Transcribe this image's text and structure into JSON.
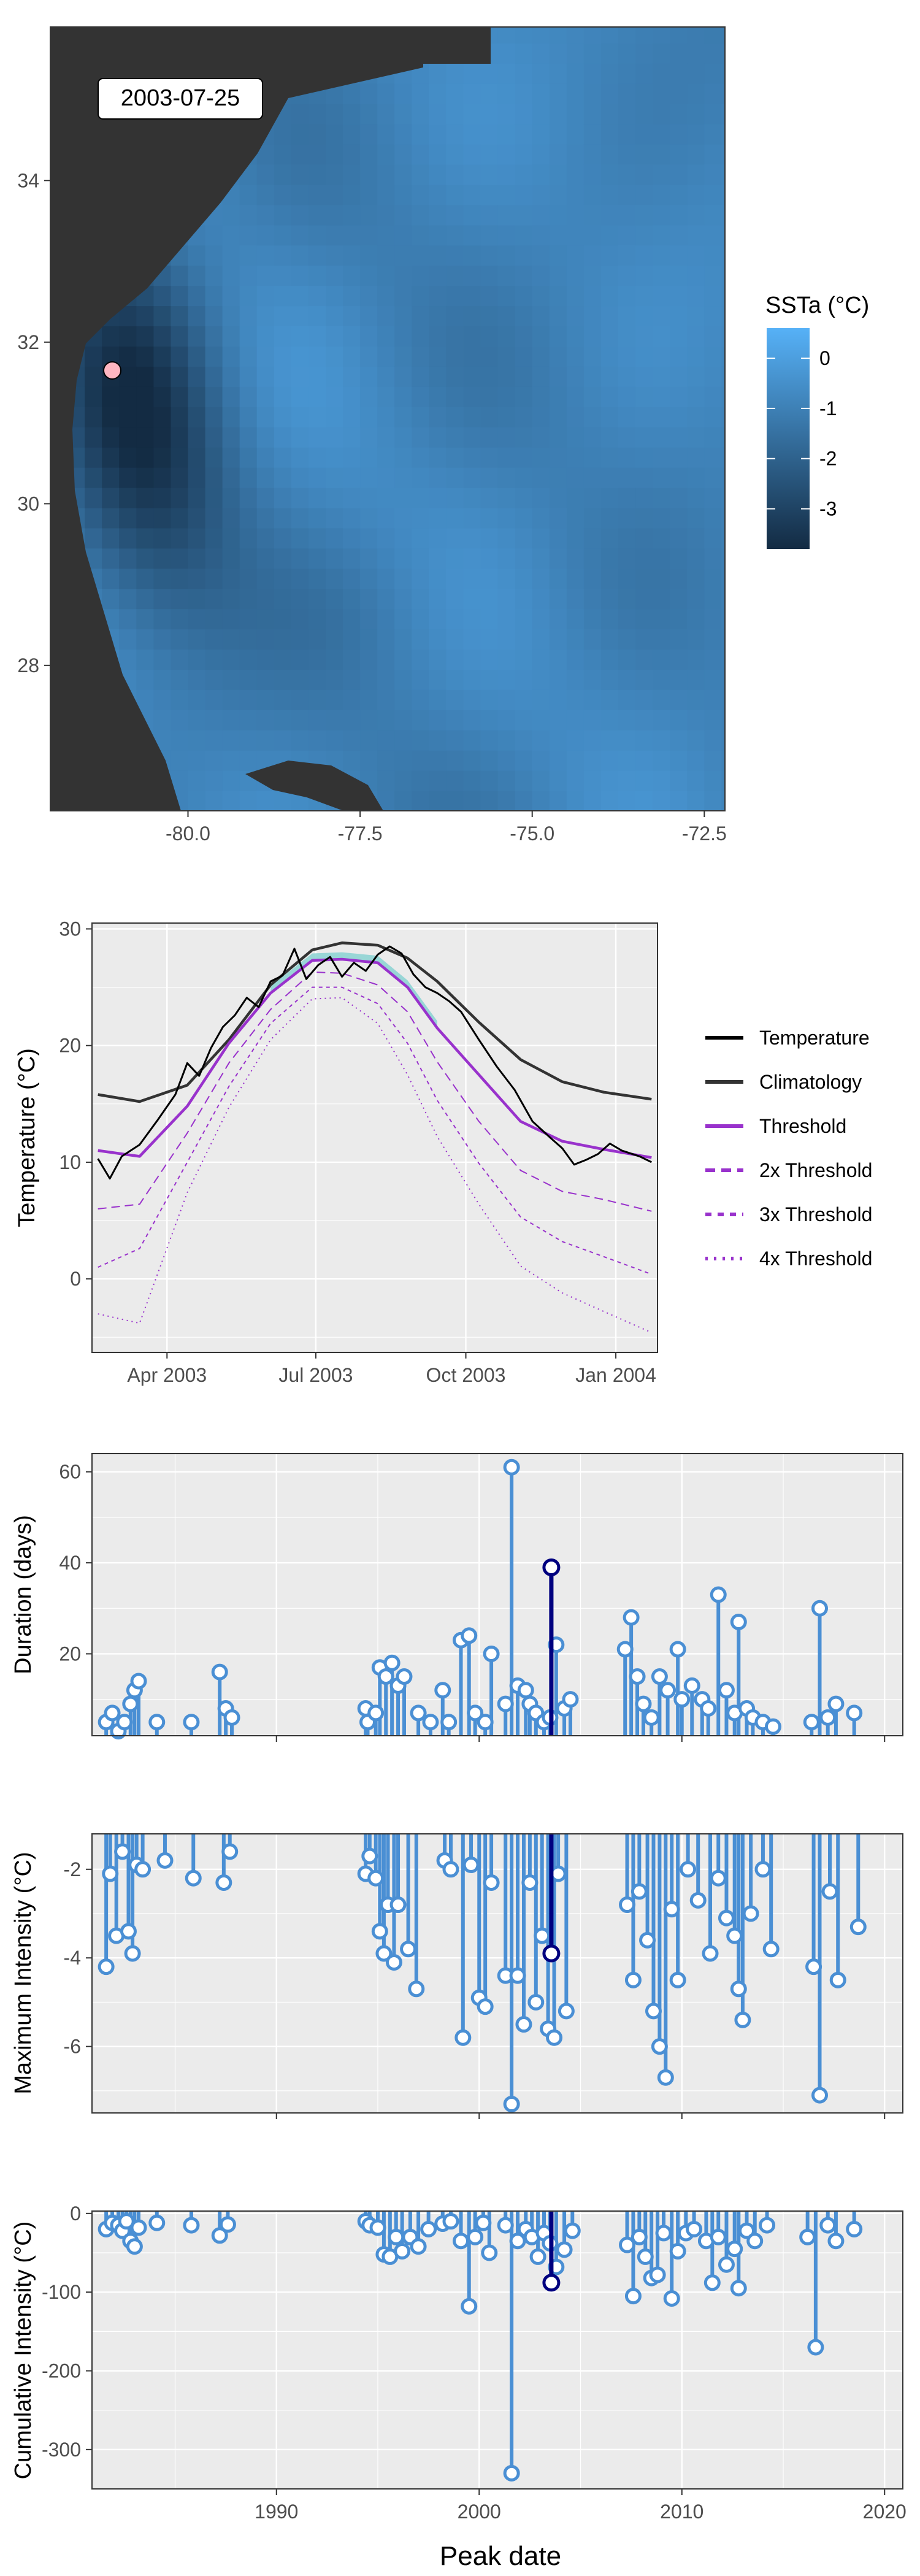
{
  "chart_data": [
    {
      "type": "heatmap",
      "date_label": "2003-07-25",
      "x_ticks": [
        "-80.0",
        "-77.5",
        "-75.0",
        "-72.5"
      ],
      "x_tick_values": [
        -80.0,
        -77.5,
        -75.0,
        -72.5
      ],
      "y_ticks": [
        "28",
        "30",
        "32",
        "34"
      ],
      "y_tick_values": [
        28,
        30,
        32,
        34
      ],
      "xlim": [
        -82.0,
        -72.2
      ],
      "ylim": [
        26.2,
        35.9
      ],
      "legend": {
        "title": "SSTa (°C)",
        "tick_labels": [
          "0",
          "-1",
          "-2",
          "-3"
        ],
        "tick_values": [
          0,
          -1,
          -2,
          -3
        ],
        "range": [
          -3.8,
          0.6
        ],
        "colors": [
          "#132B43",
          "#56B1F7"
        ]
      },
      "marker": {
        "lon": -81.1,
        "lat": 31.65,
        "color": "#ffb6c1"
      },
      "land_color": "#333333"
    },
    {
      "type": "line",
      "x_ticks": [
        "Apr 2003",
        "Jul 2003",
        "Oct 2003",
        "Jan 2004"
      ],
      "x_tick_values": [
        2003.246,
        2003.496,
        2003.748,
        2004.0
      ],
      "xlim": [
        2003.12,
        2004.07
      ],
      "y_ticks": [
        "0",
        "10",
        "20",
        "30"
      ],
      "y_tick_values": [
        0,
        10,
        20,
        30
      ],
      "ylim": [
        -6.3,
        30.5
      ],
      "ylabel": "Temperature (°C)",
      "x": [
        2003.13,
        2003.2,
        2003.28,
        2003.35,
        2003.42,
        2003.49,
        2003.54,
        2003.6,
        2003.65,
        2003.7,
        2003.77,
        2003.84,
        2003.91,
        2003.98,
        2004.06
      ],
      "series": [
        {
          "name": "Climatology",
          "values": [
            15.8,
            15.2,
            16.6,
            20.5,
            25.2,
            28.2,
            28.8,
            28.6,
            27.5,
            25.5,
            22.0,
            18.8,
            16.9,
            16.0,
            15.4
          ],
          "color": "#333333"
        },
        {
          "name": "Threshold",
          "values": [
            11.0,
            10.5,
            14.8,
            20.2,
            24.5,
            27.3,
            27.4,
            27.1,
            25.0,
            21.5,
            17.5,
            13.5,
            11.8,
            11.1,
            10.4
          ],
          "color": "#9932CC"
        },
        {
          "name": "2x Threshold",
          "values": [
            6.0,
            6.4,
            12.5,
            18.5,
            23.1,
            26.3,
            26.2,
            25.2,
            22.9,
            18.6,
            13.5,
            9.3,
            7.5,
            6.8,
            5.8
          ],
          "color": "#9932CC"
        },
        {
          "name": "3x Threshold",
          "values": [
            1.0,
            2.6,
            10.0,
            16.5,
            21.9,
            25.0,
            25.0,
            23.6,
            20.2,
            15.3,
            9.9,
            5.3,
            3.2,
            1.9,
            0.4
          ],
          "color": "#9932CC"
        },
        {
          "name": "4x Threshold",
          "values": [
            -3.0,
            -3.8,
            7.4,
            14.7,
            20.5,
            24.0,
            24.1,
            21.9,
            17.5,
            12.2,
            6.4,
            1.1,
            -1.2,
            -2.8,
            -4.6
          ],
          "color": "#9932CC"
        }
      ],
      "temperature": {
        "name": "Temperature",
        "x": [
          2003.13,
          2003.15,
          2003.17,
          2003.2,
          2003.23,
          2003.26,
          2003.28,
          2003.3,
          2003.32,
          2003.34,
          2003.36,
          2003.38,
          2003.4,
          2003.42,
          2003.44,
          2003.46,
          2003.48,
          2003.5,
          2003.52,
          2003.54,
          2003.56,
          2003.58,
          2003.6,
          2003.62,
          2003.64,
          2003.66,
          2003.68,
          2003.7,
          2003.72,
          2003.74,
          2003.77,
          2003.8,
          2003.83,
          2003.86,
          2003.89,
          2003.91,
          2003.93,
          2003.95,
          2003.97,
          2003.99,
          2004.01,
          2004.04,
          2004.06
        ],
        "values": [
          10.3,
          8.6,
          10.5,
          11.5,
          13.6,
          15.8,
          18.5,
          17.4,
          19.8,
          21.6,
          22.6,
          24.1,
          23.3,
          25.5,
          26.0,
          28.3,
          25.7,
          26.9,
          27.6,
          25.9,
          27.1,
          26.4,
          27.8,
          28.5,
          27.9,
          26.1,
          25.0,
          24.5,
          23.8,
          22.9,
          20.5,
          18.2,
          16.2,
          13.5,
          12.1,
          11.2,
          9.8,
          10.2,
          10.7,
          11.6,
          11.0,
          10.5,
          10.0
        ],
        "color": "#000000"
      },
      "legend": {
        "entries": [
          "Temperature",
          "Climatology",
          "Threshold",
          "2x Threshold",
          "3x Threshold",
          "4x Threshold"
        ],
        "placement": "right"
      }
    },
    {
      "type": "lollipop",
      "metric": "Duration (days)",
      "ylabel": "Duration (days)",
      "xlim": [
        1980.9,
        2020.9
      ],
      "x_tick_values": [
        1990,
        2000,
        2010,
        2020
      ],
      "ylim": [
        2,
        64
      ],
      "y_ticks": [
        "20",
        "40",
        "60"
      ],
      "y_tick_values": [
        20,
        40,
        60
      ],
      "baseline": 2,
      "highlight": {
        "date": 2003.56,
        "value": 39,
        "color": "#00007f"
      },
      "events": [
        [
          1981.6,
          5
        ],
        [
          1981.9,
          7
        ],
        [
          1982.2,
          3
        ],
        [
          1982.5,
          5
        ],
        [
          1982.8,
          9
        ],
        [
          1983.0,
          12
        ],
        [
          1983.2,
          14
        ],
        [
          1984.1,
          5
        ],
        [
          1985.8,
          5
        ],
        [
          1987.2,
          16
        ],
        [
          1987.5,
          8
        ],
        [
          1987.8,
          6
        ],
        [
          1994.4,
          8
        ],
        [
          1994.5,
          5
        ],
        [
          1994.9,
          7
        ],
        [
          1995.1,
          17
        ],
        [
          1995.4,
          15
        ],
        [
          1995.7,
          18
        ],
        [
          1996.0,
          13
        ],
        [
          1996.3,
          15
        ],
        [
          1997.0,
          7
        ],
        [
          1997.6,
          5
        ],
        [
          1998.2,
          12
        ],
        [
          1998.5,
          5
        ],
        [
          1999.1,
          23
        ],
        [
          1999.5,
          24
        ],
        [
          1999.8,
          7
        ],
        [
          2000.3,
          5
        ],
        [
          2000.6,
          20
        ],
        [
          2001.3,
          9
        ],
        [
          2001.6,
          61
        ],
        [
          2001.9,
          13
        ],
        [
          2002.3,
          12
        ],
        [
          2002.5,
          9
        ],
        [
          2002.8,
          7
        ],
        [
          2003.2,
          5
        ],
        [
          2003.5,
          6
        ],
        [
          2003.8,
          22
        ],
        [
          2004.2,
          8
        ],
        [
          2004.5,
          10
        ],
        [
          2007.2,
          21
        ],
        [
          2007.5,
          28
        ],
        [
          2007.8,
          15
        ],
        [
          2008.1,
          9
        ],
        [
          2008.5,
          6
        ],
        [
          2008.9,
          15
        ],
        [
          2009.3,
          12
        ],
        [
          2009.8,
          21
        ],
        [
          2010.0,
          10
        ],
        [
          2010.5,
          13
        ],
        [
          2011.0,
          10
        ],
        [
          2011.3,
          8
        ],
        [
          2011.8,
          33
        ],
        [
          2012.2,
          12
        ],
        [
          2012.6,
          7
        ],
        [
          2012.8,
          27
        ],
        [
          2013.2,
          8
        ],
        [
          2013.5,
          6
        ],
        [
          2014.0,
          5
        ],
        [
          2014.5,
          4
        ],
        [
          2016.4,
          5
        ],
        [
          2016.8,
          30
        ],
        [
          2017.2,
          6
        ],
        [
          2017.6,
          9
        ],
        [
          2018.5,
          7
        ]
      ]
    },
    {
      "type": "lollipop",
      "metric": "Maximum Intensity (°C)",
      "ylabel": "Maximum Intensity (°C)",
      "xlim": [
        1980.9,
        2020.9
      ],
      "x_tick_values": [
        1990,
        2000,
        2010,
        2020
      ],
      "ylim": [
        -7.5,
        -1.2
      ],
      "y_ticks": [
        "-6",
        "-4",
        "-2"
      ],
      "y_tick_values": [
        -6,
        -4,
        -2
      ],
      "baseline": -1.2,
      "highlight": {
        "date": 2003.56,
        "value": -3.9,
        "color": "#00007f"
      },
      "events": [
        [
          1981.6,
          -4.2
        ],
        [
          1981.8,
          -2.1
        ],
        [
          1982.1,
          -3.5
        ],
        [
          1982.4,
          -1.6
        ],
        [
          1982.7,
          -3.4
        ],
        [
          1982.9,
          -3.9
        ],
        [
          1983.1,
          -1.9
        ],
        [
          1983.4,
          -2.0
        ],
        [
          1984.5,
          -1.8
        ],
        [
          1985.9,
          -2.2
        ],
        [
          1987.4,
          -2.3
        ],
        [
          1987.7,
          -1.6
        ],
        [
          1994.4,
          -2.1
        ],
        [
          1994.6,
          -1.7
        ],
        [
          1994.9,
          -2.2
        ],
        [
          1995.1,
          -3.4
        ],
        [
          1995.3,
          -3.9
        ],
        [
          1995.5,
          -2.8
        ],
        [
          1995.8,
          -4.1
        ],
        [
          1996.0,
          -2.8
        ],
        [
          1996.5,
          -3.8
        ],
        [
          1996.9,
          -4.7
        ],
        [
          1998.3,
          -1.8
        ],
        [
          1998.6,
          -2.0
        ],
        [
          1999.2,
          -5.8
        ],
        [
          1999.6,
          -1.9
        ],
        [
          2000.0,
          -4.9
        ],
        [
          2000.3,
          -5.1
        ],
        [
          2000.6,
          -2.3
        ],
        [
          2001.3,
          -4.4
        ],
        [
          2001.6,
          -7.3
        ],
        [
          2001.9,
          -4.4
        ],
        [
          2002.2,
          -5.5
        ],
        [
          2002.5,
          -2.3
        ],
        [
          2002.8,
          -5.0
        ],
        [
          2003.1,
          -3.5
        ],
        [
          2003.4,
          -5.6
        ],
        [
          2003.7,
          -5.8
        ],
        [
          2003.9,
          -2.1
        ],
        [
          2004.3,
          -5.2
        ],
        [
          2007.3,
          -2.8
        ],
        [
          2007.6,
          -4.5
        ],
        [
          2007.9,
          -2.5
        ],
        [
          2008.3,
          -3.6
        ],
        [
          2008.6,
          -5.2
        ],
        [
          2008.9,
          -6.0
        ],
        [
          2009.2,
          -6.7
        ],
        [
          2009.5,
          -2.9
        ],
        [
          2009.8,
          -4.5
        ],
        [
          2010.3,
          -2.0
        ],
        [
          2010.8,
          -2.7
        ],
        [
          2011.4,
          -3.9
        ],
        [
          2011.8,
          -2.2
        ],
        [
          2012.2,
          -3.1
        ],
        [
          2012.6,
          -3.5
        ],
        [
          2012.8,
          -4.7
        ],
        [
          2013.0,
          -5.4
        ],
        [
          2013.4,
          -3.0
        ],
        [
          2014.0,
          -2.0
        ],
        [
          2014.4,
          -3.8
        ],
        [
          2016.5,
          -4.2
        ],
        [
          2016.8,
          -7.1
        ],
        [
          2017.3,
          -2.5
        ],
        [
          2017.7,
          -4.5
        ],
        [
          2018.7,
          -3.3
        ]
      ]
    },
    {
      "type": "lollipop",
      "metric": "Cumulative Intensity (°C)",
      "ylabel": "Cumulative Intensity (°C)",
      "xlabel": "Peak date",
      "xlim": [
        1980.9,
        2020.9
      ],
      "x_ticks": [
        "1990",
        "2000",
        "2010",
        "2020"
      ],
      "x_tick_values": [
        1990,
        2000,
        2010,
        2020
      ],
      "ylim": [
        -350,
        3
      ],
      "y_ticks": [
        "0",
        "-100",
        "-200",
        "-300"
      ],
      "y_tick_values": [
        0,
        -100,
        -200,
        -300
      ],
      "baseline": 3,
      "highlight": {
        "date": 2003.56,
        "value": -88,
        "color": "#00007f"
      },
      "events": [
        [
          1981.6,
          -20
        ],
        [
          1981.9,
          -12
        ],
        [
          1982.2,
          -15
        ],
        [
          1982.4,
          -22
        ],
        [
          1982.6,
          -10
        ],
        [
          1982.8,
          -35
        ],
        [
          1983.0,
          -42
        ],
        [
          1983.2,
          -18
        ],
        [
          1984.1,
          -12
        ],
        [
          1985.8,
          -15
        ],
        [
          1987.2,
          -28
        ],
        [
          1987.6,
          -14
        ],
        [
          1994.4,
          -10
        ],
        [
          1994.6,
          -15
        ],
        [
          1995.0,
          -18
        ],
        [
          1995.3,
          -52
        ],
        [
          1995.6,
          -55
        ],
        [
          1995.9,
          -30
        ],
        [
          1996.2,
          -48
        ],
        [
          1996.6,
          -30
        ],
        [
          1997.0,
          -42
        ],
        [
          1997.5,
          -20
        ],
        [
          1998.2,
          -13
        ],
        [
          1998.6,
          -10
        ],
        [
          1999.1,
          -35
        ],
        [
          1999.5,
          -118
        ],
        [
          1999.8,
          -30
        ],
        [
          2000.2,
          -12
        ],
        [
          2000.5,
          -50
        ],
        [
          2001.3,
          -15
        ],
        [
          2001.6,
          -330
        ],
        [
          2001.9,
          -35
        ],
        [
          2002.3,
          -20
        ],
        [
          2002.6,
          -30
        ],
        [
          2002.9,
          -55
        ],
        [
          2003.2,
          -25
        ],
        [
          2003.5,
          -38
        ],
        [
          2003.8,
          -68
        ],
        [
          2004.2,
          -46
        ],
        [
          2004.6,
          -22
        ],
        [
          2007.3,
          -40
        ],
        [
          2007.6,
          -105
        ],
        [
          2007.9,
          -30
        ],
        [
          2008.2,
          -55
        ],
        [
          2008.5,
          -82
        ],
        [
          2008.8,
          -78
        ],
        [
          2009.1,
          -25
        ],
        [
          2009.5,
          -108
        ],
        [
          2009.8,
          -48
        ],
        [
          2010.2,
          -25
        ],
        [
          2010.6,
          -20
        ],
        [
          2011.2,
          -35
        ],
        [
          2011.5,
          -88
        ],
        [
          2011.8,
          -30
        ],
        [
          2012.2,
          -65
        ],
        [
          2012.6,
          -45
        ],
        [
          2012.8,
          -95
        ],
        [
          2013.2,
          -22
        ],
        [
          2013.6,
          -35
        ],
        [
          2014.2,
          -15
        ],
        [
          2016.2,
          -30
        ],
        [
          2016.6,
          -170
        ],
        [
          2017.2,
          -15
        ],
        [
          2017.6,
          -35
        ],
        [
          2018.5,
          -20
        ]
      ]
    }
  ]
}
